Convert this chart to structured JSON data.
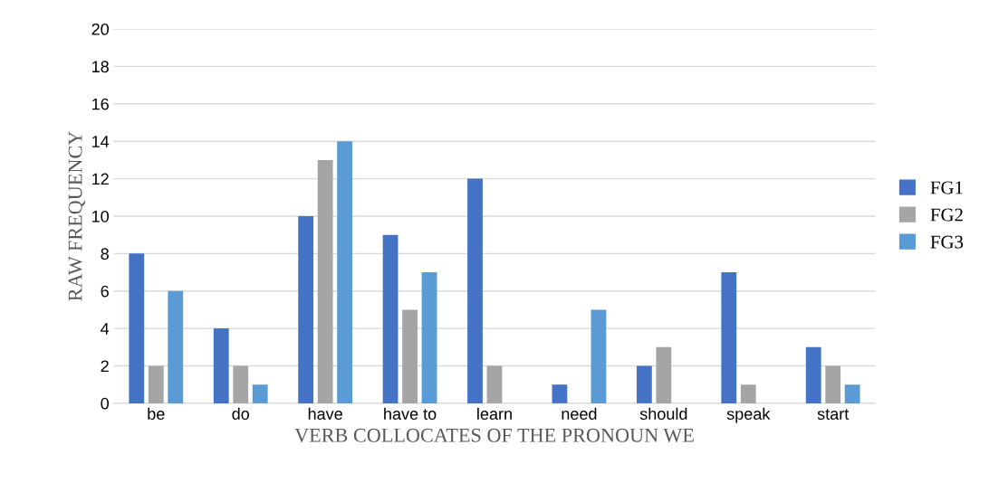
{
  "chart_data": {
    "type": "bar",
    "xlabel": "VERB COLLOCATES OF THE PRONOUN WE",
    "ylabel": "RAW FREQUENCY",
    "categories": [
      "be",
      "do",
      "have",
      "have to",
      "learn",
      "need",
      "should",
      "speak",
      "start"
    ],
    "series": [
      {
        "name": "FG1",
        "color": "#4472c4",
        "values": [
          8,
          4,
          10,
          9,
          12,
          1,
          2,
          7,
          3
        ]
      },
      {
        "name": "FG2",
        "color": "#a5a5a5",
        "values": [
          2,
          2,
          13,
          5,
          2,
          0,
          3,
          1,
          2
        ]
      },
      {
        "name": "FG3",
        "color": "#5b9bd5",
        "values": [
          6,
          1,
          14,
          7,
          0,
          5,
          0,
          0,
          1
        ]
      }
    ],
    "ylim": [
      0,
      20
    ],
    "yticks": [
      0,
      2,
      4,
      6,
      8,
      10,
      12,
      14,
      16,
      18,
      20
    ],
    "grid": "y",
    "legend": "right"
  }
}
